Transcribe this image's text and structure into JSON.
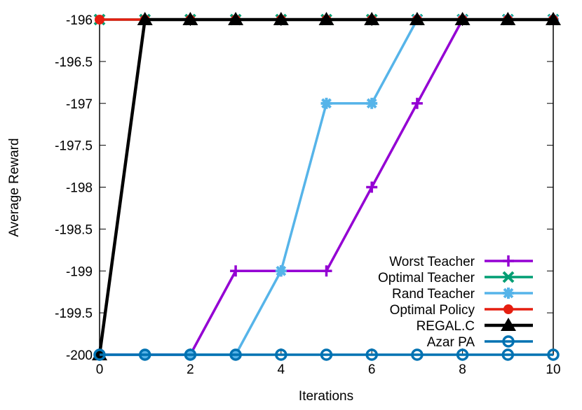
{
  "chart_data": {
    "type": "line",
    "title": "",
    "xlabel": "Iterations",
    "ylabel": "Average Reward",
    "xlim": [
      0,
      10
    ],
    "ylim": [
      -200,
      -196
    ],
    "xticks": [
      0,
      2,
      4,
      6,
      8,
      10
    ],
    "yticks": [
      -200,
      -199.5,
      -199,
      -198.5,
      -198,
      -197.5,
      -197,
      -196.5,
      -196
    ],
    "ytick_labels": [
      "-200",
      "-199.5",
      "-199",
      "-198.5",
      "-198",
      "-197.5",
      "-197",
      "-196.5",
      "-196"
    ],
    "xtick_labels": [
      "0",
      "2",
      "4",
      "6",
      "8",
      "10"
    ],
    "grid": false,
    "legend_position": "bottom-right",
    "x": [
      0,
      1,
      2,
      3,
      4,
      5,
      6,
      7,
      8,
      9,
      10
    ],
    "series": [
      {
        "name": "Worst Teacher",
        "color": "#9400d3",
        "marker": "plus",
        "values": [
          -200,
          -200,
          -200,
          -199,
          -199,
          -199,
          -198,
          -197,
          -196,
          -196,
          -196
        ]
      },
      {
        "name": "Optimal Teacher",
        "color": "#009e73",
        "marker": "x",
        "values": [
          -196,
          -196,
          -196,
          -196,
          -196,
          -196,
          -196,
          -196,
          -196,
          -196,
          -196
        ]
      },
      {
        "name": "Rand Teacher",
        "color": "#56b4e9",
        "marker": "star",
        "values": [
          -200,
          -200,
          -200,
          -200,
          -199,
          -197,
          -197,
          -196,
          -196,
          -196,
          -196
        ]
      },
      {
        "name": "Optimal Policy",
        "color": "#e51e10",
        "marker": "circle-filled",
        "values": [
          -196,
          -196,
          -196,
          -196,
          -196,
          -196,
          -196,
          -196,
          -196,
          -196,
          -196
        ]
      },
      {
        "name": "REGAL.C",
        "color": "#000000",
        "marker": "triangle-filled",
        "values": [
          -200,
          -196,
          -196,
          -196,
          -196,
          -196,
          -196,
          -196,
          -196,
          -196,
          -196
        ]
      },
      {
        "name": "Azar PA",
        "color": "#0072b2",
        "marker": "circle-open",
        "values": [
          -200,
          -200,
          -200,
          -200,
          -200,
          -200,
          -200,
          -200,
          -200,
          -200,
          -200
        ]
      }
    ]
  }
}
